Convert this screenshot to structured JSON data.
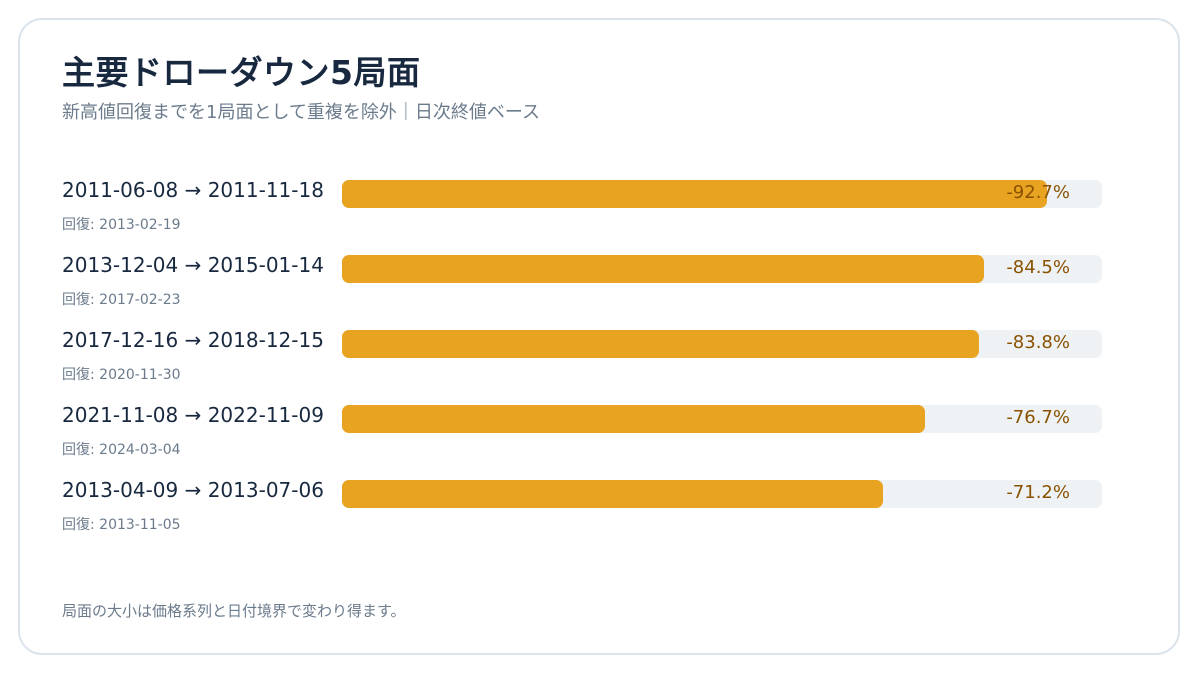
{
  "title": "主要ドローダウン5局面",
  "subtitle": "新高値回復までを1局面として重複を除外｜日次終値ベース",
  "footnote": "局面の大小は価格系列と日付境界で変わり得ます。",
  "colors": {
    "bar_fill": "#e8a321",
    "bar_track": "#eef2f5",
    "value_text": "#8a5200",
    "title_text": "#17283f",
    "muted_text": "#6b7b8c",
    "card_border": "#dbe3ec"
  },
  "chart_data": {
    "type": "bar",
    "orientation": "horizontal",
    "value_unit": "%",
    "xlim": [
      0,
      100
    ],
    "grid": false,
    "categories": [
      "2011-06-08 → 2011-11-18",
      "2013-12-04 → 2015-01-14",
      "2017-12-16 → 2018-12-15",
      "2021-11-08 → 2022-11-09",
      "2013-04-09 → 2013-07-06"
    ],
    "values": [
      -92.7,
      -84.5,
      -83.8,
      -76.7,
      -71.2
    ],
    "items": [
      {
        "period": "2011-06-08 → 2011-11-18",
        "recovery": "回復: 2013-02-19",
        "value": -92.7,
        "label": "-92.7%"
      },
      {
        "period": "2013-12-04 → 2015-01-14",
        "recovery": "回復: 2017-02-23",
        "value": -84.5,
        "label": "-84.5%"
      },
      {
        "period": "2017-12-16 → 2018-12-15",
        "recovery": "回復: 2020-11-30",
        "value": -83.8,
        "label": "-83.8%"
      },
      {
        "period": "2021-11-08 → 2022-11-09",
        "recovery": "回復: 2024-03-04",
        "value": -76.7,
        "label": "-76.7%"
      },
      {
        "period": "2013-04-09 → 2013-07-06",
        "recovery": "回復: 2013-11-05",
        "value": -71.2,
        "label": "-71.2%"
      }
    ]
  }
}
